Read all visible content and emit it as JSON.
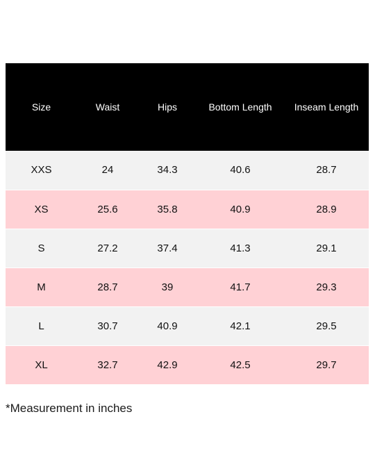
{
  "table": {
    "headers": [
      "Size",
      "Waist",
      "Hips",
      "Bottom Length",
      "Inseam Length"
    ],
    "rows": [
      [
        "XXS",
        "24",
        "34.3",
        "40.6",
        "28.7"
      ],
      [
        "XS",
        "25.6",
        "35.8",
        "40.9",
        "28.9"
      ],
      [
        "S",
        "27.2",
        "37.4",
        "41.3",
        "29.1"
      ],
      [
        "M",
        "28.7",
        "39",
        "41.7",
        "29.3"
      ],
      [
        "L",
        "30.7",
        "40.9",
        "42.1",
        "29.5"
      ],
      [
        "XL",
        "32.7",
        "42.9",
        "42.5",
        "29.7"
      ]
    ]
  },
  "colors": {
    "header_background": "#000000",
    "header_text": "#ffffff",
    "row_light": "#f2f2f2",
    "row_pink": "#ffd1d5"
  },
  "footnote": "*Measurement in inches"
}
